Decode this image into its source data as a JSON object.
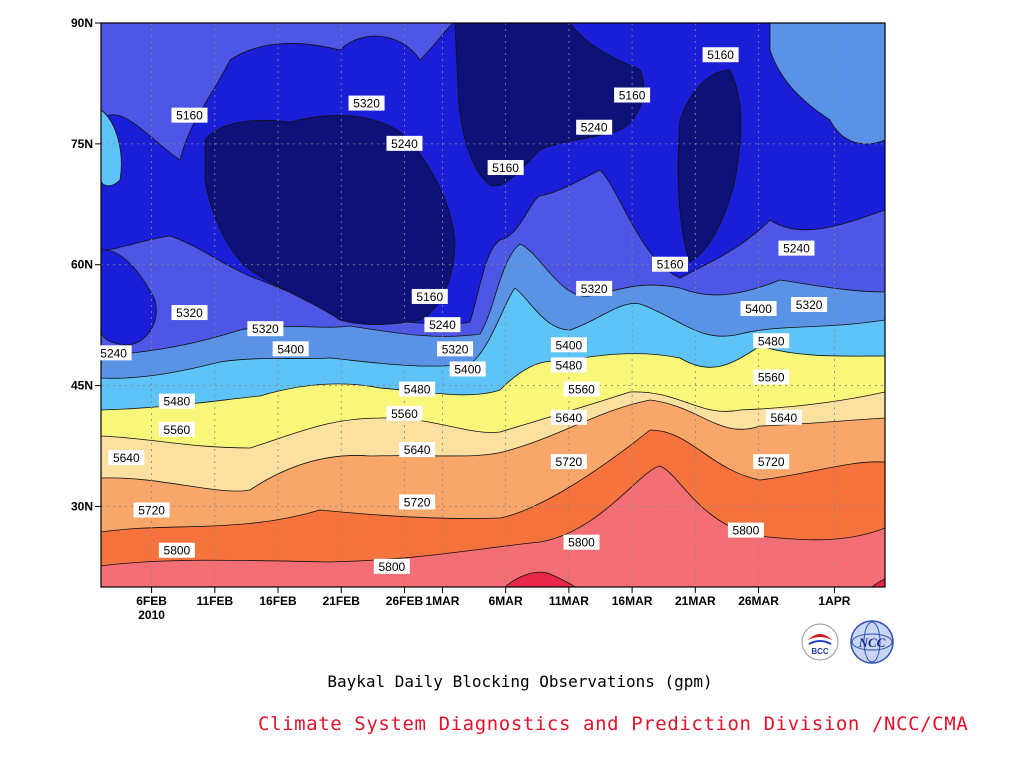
{
  "chart_data": {
    "type": "heatmap",
    "title": "Baykal Daily Blocking Observations (gpm)",
    "credit": "Climate System Diagnostics and Prediction Division /NCC/CMA",
    "xlabel": "",
    "ylabel": "",
    "x_ticks": [
      "6FEB",
      "11FEB",
      "16FEB",
      "21FEB",
      "26FEB",
      "1MAR",
      "6MAR",
      "11MAR",
      "16MAR",
      "21MAR",
      "26MAR",
      "1APR"
    ],
    "x_year_label": "2010",
    "y_ticks": [
      "30N",
      "45N",
      "60N",
      "75N",
      "90N"
    ],
    "xlim": [
      "2010-02-02",
      "2010-04-05"
    ],
    "ylim": [
      20,
      90
    ],
    "levels": [
      5160,
      5240,
      5320,
      5400,
      5480,
      5560,
      5640,
      5720,
      5800
    ],
    "colors": [
      "#0d1178",
      "#1a1ed6",
      "#4e56e6",
      "#5a93e6",
      "#5ec4f8",
      "#f8f77a",
      "#fbe0a0",
      "#f9a66a",
      "#f6733e",
      "#f46e75",
      "#e7264a"
    ],
    "contour_labels": [
      {
        "text": "5160",
        "date": "2010-02-09",
        "lat": 78.5
      },
      {
        "text": "5320",
        "date": "2010-02-23",
        "lat": 80
      },
      {
        "text": "5240",
        "date": "2010-02-26",
        "lat": 75
      },
      {
        "text": "5160",
        "date": "2010-03-06",
        "lat": 72
      },
      {
        "text": "5240",
        "date": "2010-03-13",
        "lat": 77
      },
      {
        "text": "5160",
        "date": "2010-03-16",
        "lat": 81
      },
      {
        "text": "5160",
        "date": "2010-03-23",
        "lat": 86
      },
      {
        "text": "5240",
        "date": "2010-03-29",
        "lat": 62
      },
      {
        "text": "5160",
        "date": "2010-03-19",
        "lat": 60
      },
      {
        "text": "5320",
        "date": "2010-03-13",
        "lat": 57
      },
      {
        "text": "5400",
        "date": "2010-03-26",
        "lat": 54.5
      },
      {
        "text": "5320",
        "date": "2010-03-30",
        "lat": 55
      },
      {
        "text": "5480",
        "date": "2010-03-27",
        "lat": 50.5
      },
      {
        "text": "5560",
        "date": "2010-03-27",
        "lat": 46
      },
      {
        "text": "5640",
        "date": "2010-03-28",
        "lat": 41
      },
      {
        "text": "5720",
        "date": "2010-03-27",
        "lat": 35.5
      },
      {
        "text": "5800",
        "date": "2010-03-25",
        "lat": 27
      },
      {
        "text": "5160",
        "date": "2010-02-28",
        "lat": 56
      },
      {
        "text": "5240",
        "date": "2010-03-01",
        "lat": 52.5
      },
      {
        "text": "5320",
        "date": "2010-03-02",
        "lat": 49.5
      },
      {
        "text": "5400",
        "date": "2010-03-03",
        "lat": 47
      },
      {
        "text": "5400",
        "date": "2010-03-11",
        "lat": 50
      },
      {
        "text": "5480",
        "date": "2010-03-11",
        "lat": 47.5
      },
      {
        "text": "5560",
        "date": "2010-03-12",
        "lat": 44.5
      },
      {
        "text": "5640",
        "date": "2010-03-11",
        "lat": 41
      },
      {
        "text": "5720",
        "date": "2010-03-11",
        "lat": 35.5
      },
      {
        "text": "5800",
        "date": "2010-03-12",
        "lat": 25.5
      },
      {
        "text": "5320",
        "date": "2010-02-09",
        "lat": 54
      },
      {
        "text": "5320",
        "date": "2010-02-15",
        "lat": 52
      },
      {
        "text": "5240",
        "date": "2010-02-03",
        "lat": 49
      },
      {
        "text": "5400",
        "date": "2010-02-17",
        "lat": 49.5
      },
      {
        "text": "5480",
        "date": "2010-02-27",
        "lat": 44.5
      },
      {
        "text": "5480",
        "date": "2010-02-08",
        "lat": 43
      },
      {
        "text": "5560",
        "date": "2010-02-26",
        "lat": 41.5
      },
      {
        "text": "5560",
        "date": "2010-02-08",
        "lat": 39.5
      },
      {
        "text": "5640",
        "date": "2010-02-27",
        "lat": 37
      },
      {
        "text": "5640",
        "date": "2010-02-04",
        "lat": 36
      },
      {
        "text": "5720",
        "date": "2010-02-27",
        "lat": 30.5
      },
      {
        "text": "5720",
        "date": "2010-02-06",
        "lat": 29.5
      },
      {
        "text": "5800",
        "date": "2010-02-08",
        "lat": 24.5
      },
      {
        "text": "5800",
        "date": "2010-02-25",
        "lat": 22.5
      }
    ]
  },
  "logos": {
    "left_text": "BCC",
    "right_text": "NCC"
  }
}
